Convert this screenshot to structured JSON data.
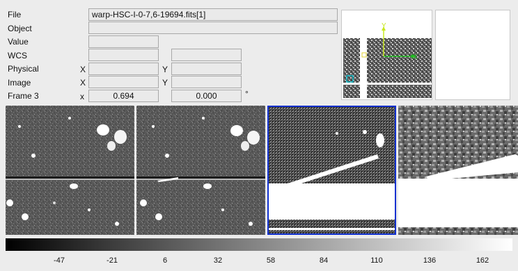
{
  "info": {
    "labels": {
      "file": "File",
      "object": "Object",
      "value": "Value",
      "wcs": "WCS",
      "physical": "Physical",
      "image": "Image",
      "frame": "Frame 3"
    },
    "axis": {
      "x_upper": "X",
      "y_upper": "Y",
      "x_lower": "x"
    },
    "file_value": "warp-HSC-I-0-7,6-19694.fits[1]",
    "object_value": "",
    "value_value": "",
    "wcs_x": "",
    "wcs_y": "",
    "physical_x": "",
    "physical_y": "",
    "image_x": "",
    "image_y": "",
    "frame_x": "0.694",
    "frame_y": "0.000",
    "degree_symbol": "°"
  },
  "panner": {
    "compass": {
      "x_label": "X",
      "y_label": "Y"
    },
    "colors": {
      "compass_x": "#20c020",
      "compass_y": "#c8e820",
      "box": "#00d0e0"
    }
  },
  "frames": {
    "active_index": 2,
    "active_border_color": "#1030d0",
    "count": 4
  },
  "colorbar": {
    "ticks": [
      "-47",
      "-21",
      "6",
      "32",
      "58",
      "84",
      "110",
      "136",
      "162"
    ]
  }
}
